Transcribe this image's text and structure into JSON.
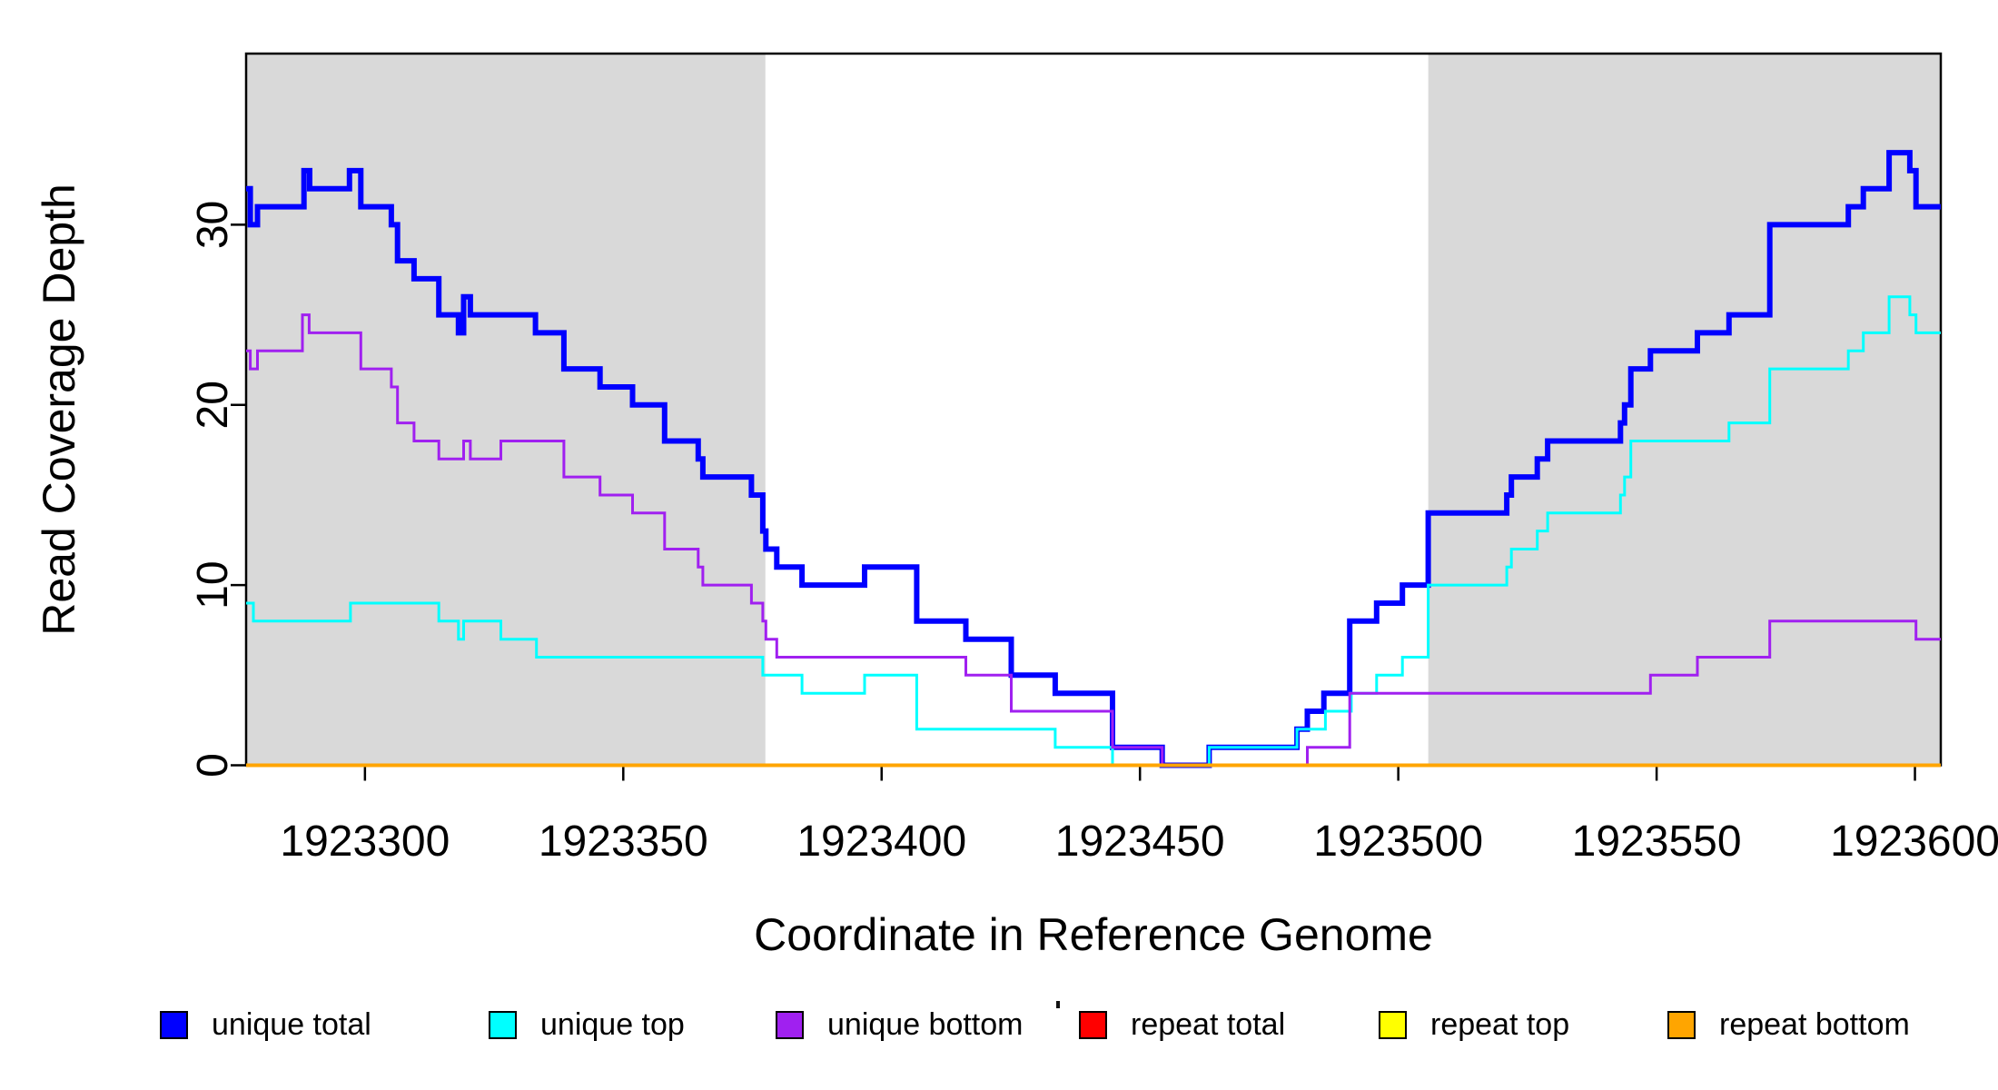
{
  "chart_data": {
    "type": "line",
    "subtype": "step-coverage-plot",
    "title": "",
    "xlabel": "Coordinate in Reference Genome",
    "ylabel": "Read Coverage Depth",
    "x_range": [
      1923277,
      1923605
    ],
    "y_range": [
      0,
      39.5
    ],
    "grid": false,
    "x_ticks": [
      1923300,
      1923350,
      1923400,
      1923450,
      1923500,
      1923550,
      1923600
    ],
    "x_tick_labels": [
      "1923300",
      "1923350",
      "1923400",
      "1923450",
      "1923500",
      "1923550",
      "1923600"
    ],
    "y_ticks": [
      0,
      10,
      20,
      30
    ],
    "y_tick_labels": [
      "0",
      "10",
      "20",
      "30"
    ],
    "shaded_regions": [
      {
        "x0": 1923277,
        "x1": 1923377.5,
        "color": "#d9d9d9"
      },
      {
        "x0": 1923505.8,
        "x1": 1923605,
        "color": "#d9d9d9"
      }
    ],
    "series_end_x": 1923606,
    "series": [
      {
        "name": "unique total",
        "color": "#0000ff",
        "width": 6,
        "points": [
          [
            1923276,
            32
          ],
          [
            1923277.8,
            30
          ],
          [
            1923279.2,
            31
          ],
          [
            1923288.2,
            33
          ],
          [
            1923289.3,
            32
          ],
          [
            1923297,
            33
          ],
          [
            1923299.2,
            31
          ],
          [
            1923305.1,
            30
          ],
          [
            1923306.3,
            28
          ],
          [
            1923309.5,
            27
          ],
          [
            1923314.3,
            25
          ],
          [
            1923318.1,
            24
          ],
          [
            1923319.1,
            26
          ],
          [
            1923320.4,
            25
          ],
          [
            1923333,
            24
          ],
          [
            1923338.5,
            22
          ],
          [
            1923345.5,
            21
          ],
          [
            1923351.8,
            20
          ],
          [
            1923358,
            18
          ],
          [
            1923364.5,
            17
          ],
          [
            1923365.4,
            16
          ],
          [
            1923374.8,
            15
          ],
          [
            1923377,
            13
          ],
          [
            1923377.6,
            12
          ],
          [
            1923379.7,
            11
          ],
          [
            1923384.6,
            10
          ],
          [
            1923396.7,
            11
          ],
          [
            1923406.8,
            8
          ],
          [
            1923416.3,
            7
          ],
          [
            1923425.1,
            5
          ],
          [
            1923433.6,
            4
          ],
          [
            1923444.7,
            1
          ],
          [
            1923454.3,
            0
          ],
          [
            1923463.4,
            1
          ],
          [
            1923480.4,
            2
          ],
          [
            1923482.4,
            3
          ],
          [
            1923485.6,
            4
          ],
          [
            1923490.6,
            8
          ],
          [
            1923495.8,
            9
          ],
          [
            1923500.8,
            10
          ],
          [
            1923505.8,
            14
          ],
          [
            1923521,
            15
          ],
          [
            1923521.9,
            16
          ],
          [
            1923526.9,
            17
          ],
          [
            1923528.9,
            18
          ],
          [
            1923543,
            19
          ],
          [
            1923543.8,
            20
          ],
          [
            1923545,
            22
          ],
          [
            1923548.8,
            23
          ],
          [
            1923557.9,
            24
          ],
          [
            1923564,
            25
          ],
          [
            1923571.9,
            30
          ],
          [
            1923587.1,
            31
          ],
          [
            1923590,
            32
          ],
          [
            1923595,
            34
          ],
          [
            1923599,
            33
          ],
          [
            1923600.2,
            31
          ]
        ]
      },
      {
        "name": "unique top",
        "color": "#00ffff",
        "width": 3,
        "points": [
          [
            1923276,
            9
          ],
          [
            1923278.4,
            8
          ],
          [
            1923297.2,
            9
          ],
          [
            1923314.3,
            8
          ],
          [
            1923318.1,
            7
          ],
          [
            1923319.1,
            8
          ],
          [
            1923326.3,
            7
          ],
          [
            1923333.2,
            6
          ],
          [
            1923377,
            5
          ],
          [
            1923384.6,
            4
          ],
          [
            1923396.7,
            5
          ],
          [
            1923406.8,
            2
          ],
          [
            1923433.6,
            1
          ],
          [
            1923444.7,
            0
          ],
          [
            1923463.4,
            1
          ],
          [
            1923480.4,
            2
          ],
          [
            1923485.9,
            3
          ],
          [
            1923490.9,
            4
          ],
          [
            1923495.8,
            5
          ],
          [
            1923500.8,
            6
          ],
          [
            1923505.8,
            10
          ],
          [
            1923521,
            11
          ],
          [
            1923521.9,
            12
          ],
          [
            1923526.9,
            13
          ],
          [
            1923528.9,
            14
          ],
          [
            1923543,
            15
          ],
          [
            1923543.8,
            16
          ],
          [
            1923545,
            18
          ],
          [
            1923564,
            19
          ],
          [
            1923571.9,
            22
          ],
          [
            1923587.1,
            23
          ],
          [
            1923590,
            24
          ],
          [
            1923595,
            26
          ],
          [
            1923599,
            25
          ],
          [
            1923600.2,
            24
          ]
        ]
      },
      {
        "name": "unique bottom",
        "color": "#a020f0",
        "width": 3,
        "points": [
          [
            1923276,
            23
          ],
          [
            1923277.8,
            22
          ],
          [
            1923279.2,
            23
          ],
          [
            1923287.9,
            25
          ],
          [
            1923289.2,
            24
          ],
          [
            1923299.2,
            22
          ],
          [
            1923305.1,
            21
          ],
          [
            1923306.3,
            19
          ],
          [
            1923309.5,
            18
          ],
          [
            1923314.3,
            17
          ],
          [
            1923319.1,
            18
          ],
          [
            1923320.4,
            17
          ],
          [
            1923326.3,
            18
          ],
          [
            1923338.5,
            16
          ],
          [
            1923345.5,
            15
          ],
          [
            1923351.8,
            14
          ],
          [
            1923358,
            12
          ],
          [
            1923364.5,
            11
          ],
          [
            1923365.4,
            10
          ],
          [
            1923374.8,
            9
          ],
          [
            1923377,
            8
          ],
          [
            1923377.6,
            7
          ],
          [
            1923379.7,
            6
          ],
          [
            1923416.3,
            5
          ],
          [
            1923425.1,
            3
          ],
          [
            1923444.7,
            1
          ],
          [
            1923454.3,
            0
          ],
          [
            1923482.4,
            1
          ],
          [
            1923490.6,
            4
          ],
          [
            1923548.8,
            5
          ],
          [
            1923557.9,
            6
          ],
          [
            1923571.9,
            8
          ],
          [
            1923600.2,
            7
          ]
        ]
      },
      {
        "name": "repeat total",
        "color": "#ff0000",
        "width": 3,
        "points": [
          [
            1923276,
            0
          ]
        ]
      },
      {
        "name": "repeat top",
        "color": "#ffff00",
        "width": 3,
        "points": [
          [
            1923276,
            0
          ]
        ]
      },
      {
        "name": "repeat bottom",
        "color": "#ffa500",
        "width": 4,
        "points": [
          [
            1923276,
            0
          ]
        ]
      }
    ],
    "legend": {
      "position": "bottom",
      "items": [
        {
          "label": "unique total",
          "color": "#0000ff"
        },
        {
          "label": "unique top",
          "color": "#00ffff"
        },
        {
          "label": "unique bottom",
          "color": "#a020f0"
        },
        {
          "label": "repeat total",
          "color": "#ff0000"
        },
        {
          "label": "repeat top",
          "color": "#ffff00"
        },
        {
          "label": "repeat bottom",
          "color": "#ffa500"
        }
      ]
    },
    "axis_color": "#000000",
    "background_color": "#ffffff"
  }
}
